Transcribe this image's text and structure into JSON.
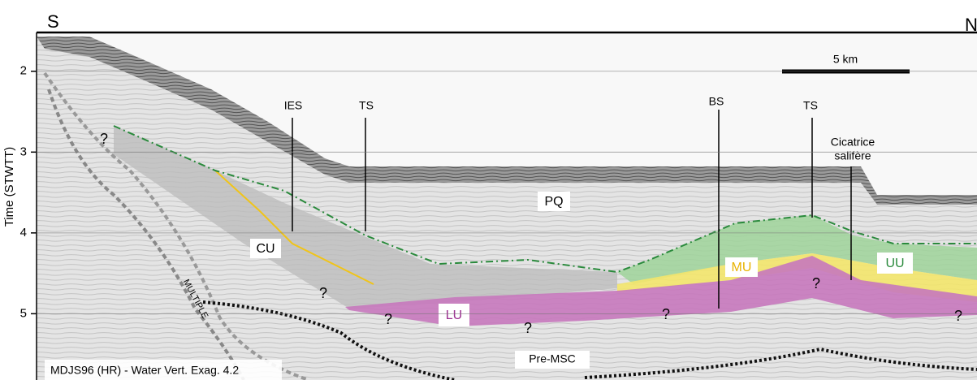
{
  "profile": {
    "left_end": "S",
    "right_end": "N",
    "scale_bar": "5 km",
    "axis": {
      "label": "Time (STWTT)",
      "ticks": [
        2,
        3,
        4,
        5
      ],
      "range": [
        1.52,
        5.82
      ]
    },
    "markers": [
      "IES",
      "TS",
      "BS",
      "TS"
    ],
    "marker_note": [
      "Cicatrice",
      "salifère"
    ],
    "units": [
      "PQ",
      "CU",
      "MU",
      "UU",
      "LU"
    ],
    "question": "?",
    "multiple": "MULTIPLE",
    "basement": "Pre-MSC",
    "caption": "MDJS96 (HR) - Water Vert. Exag. 4.2"
  }
}
